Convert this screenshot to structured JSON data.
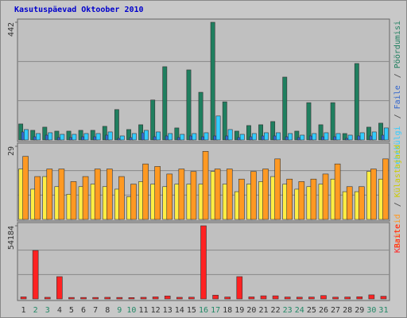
{
  "title": "Kasutuspäevad Oktoober 2010",
  "legend_separator": "/",
  "categories": [
    "1",
    "2",
    "3",
    "4",
    "5",
    "6",
    "7",
    "8",
    "9",
    "10",
    "11",
    "12",
    "13",
    "14",
    "15",
    "16",
    "17",
    "18",
    "19",
    "20",
    "21",
    "22",
    "23",
    "24",
    "25",
    "26",
    "27",
    "28",
    "29",
    "30",
    "31"
  ],
  "category_label_colors": [
    "#333333",
    "#228866",
    "#228866",
    "#333333",
    "#333333",
    "#333333",
    "#333333",
    "#333333",
    "#228866",
    "#228866",
    "#333333",
    "#333333",
    "#333333",
    "#333333",
    "#333333",
    "#228866",
    "#228866",
    "#333333",
    "#333333",
    "#333333",
    "#333333",
    "#333333",
    "#228866",
    "#228866",
    "#333333",
    "#333333",
    "#333333",
    "#333333",
    "#333333",
    "#228866",
    "#228866"
  ],
  "chart_data": [
    {
      "type": "bar",
      "ylim": [
        0,
        442
      ],
      "yticks": [
        442
      ],
      "grid": true,
      "series": [
        {
          "name": "Pöördumisi",
          "color": "#1f7f5f",
          "values": [
            60,
            36,
            48,
            33,
            33,
            36,
            36,
            51,
            114,
            39,
            57,
            150,
            275,
            45,
            263,
            179,
            442,
            143,
            33,
            54,
            57,
            69,
            236,
            33,
            140,
            57,
            140,
            24,
            287,
            48,
            63
          ]
        },
        {
          "name": "Faile",
          "color": "#3366cc",
          "values": [
            30,
            12,
            18,
            9,
            9,
            12,
            12,
            18,
            6,
            9,
            27,
            12,
            15,
            9,
            15,
            12,
            15,
            15,
            9,
            12,
            15,
            15,
            12,
            9,
            15,
            12,
            12,
            6,
            15,
            15,
            18
          ]
        },
        {
          "name": "Lehekülgi",
          "color": "#33ccff",
          "values": [
            39,
            24,
            27,
            21,
            21,
            24,
            24,
            30,
            15,
            24,
            36,
            30,
            24,
            21,
            24,
            27,
            90,
            39,
            21,
            24,
            27,
            27,
            24,
            18,
            24,
            27,
            24,
            18,
            27,
            30,
            45
          ]
        }
      ]
    },
    {
      "type": "bar",
      "ylim": [
        0,
        29
      ],
      "yticks": [
        29
      ],
      "grid": true,
      "series": [
        {
          "name": "Külastajaid",
          "color": "#ffee44",
          "values": [
            20,
            12,
            17,
            13,
            10,
            13,
            14,
            13,
            12,
            9,
            15,
            14,
            13,
            14,
            14,
            14,
            19,
            14,
            11,
            14,
            15,
            17,
            14,
            12,
            13,
            14,
            16,
            11,
            11,
            19,
            16
          ]
        },
        {
          "name": "Aruteid",
          "color": "#ff9922",
          "values": [
            25,
            17,
            20,
            20,
            15,
            17,
            20,
            20,
            17,
            14,
            22,
            21,
            18,
            20,
            19,
            27,
            20,
            20,
            16,
            19,
            20,
            24,
            16,
            15,
            16,
            18,
            22,
            13,
            13,
            20,
            24
          ]
        }
      ]
    },
    {
      "type": "bar",
      "ylim": [
        0,
        54184
      ],
      "yticks": [
        54184
      ],
      "grid": true,
      "series": [
        {
          "name": "KBaite",
          "color": "#ff2222",
          "values": [
            1500,
            35900,
            1200,
            16500,
            1100,
            1100,
            1100,
            1200,
            1100,
            1000,
            1200,
            1500,
            2200,
            1200,
            1300,
            54184,
            2800,
            1400,
            16500,
            1500,
            2300,
            2300,
            1400,
            1300,
            1400,
            2500,
            1300,
            1400,
            1600,
            3000,
            2000
          ]
        }
      ]
    }
  ]
}
